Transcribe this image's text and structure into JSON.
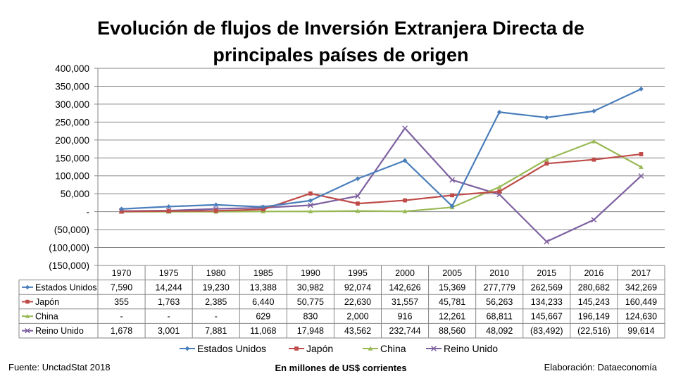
{
  "chart_data": {
    "type": "line",
    "title_lines": [
      "Evolución de flujos de Inversión Extranjera Directa de",
      "principales países de origen"
    ],
    "x": [
      "1970",
      "1975",
      "1980",
      "1985",
      "1990",
      "1995",
      "2000",
      "2005",
      "2010",
      "2015",
      "2016",
      "2017"
    ],
    "ylim": [
      -150000,
      400000
    ],
    "yticks": [
      400000,
      350000,
      300000,
      250000,
      200000,
      150000,
      100000,
      50000,
      0,
      -50000,
      -100000,
      -150000
    ],
    "ytick_labels": [
      "400,000",
      "350,000",
      "300,000",
      "250,000",
      "200,000",
      "150,000",
      "100,000",
      "50,000",
      "-",
      "(50,000)",
      "(100,000)",
      "(150,000)"
    ],
    "grid": true,
    "legend_position": "bottom",
    "series": [
      {
        "name": "Estados Unidos",
        "color": "#4a7ebb",
        "marker": "diamond",
        "values": [
          7590,
          14244,
          19230,
          13388,
          30982,
          92074,
          142626,
          15369,
          277779,
          262569,
          280682,
          342269
        ],
        "labels": [
          "7,590",
          "14,244",
          "19,230",
          "13,388",
          "30,982",
          "92,074",
          "142,626",
          "15,369",
          "277,779",
          "262,569",
          "280,682",
          "342,269"
        ]
      },
      {
        "name": "Japón",
        "color": "#be4b48",
        "marker": "square",
        "values": [
          355,
          1763,
          2385,
          6440,
          50775,
          22630,
          31557,
          45781,
          56263,
          134233,
          145243,
          160449
        ],
        "labels": [
          "355",
          "1,763",
          "2,385",
          "6,440",
          "50,775",
          "22,630",
          "31,557",
          "45,781",
          "56,263",
          "134,233",
          "145,243",
          "160,449"
        ]
      },
      {
        "name": "China",
        "color": "#98b954",
        "marker": "triangle",
        "values": [
          0,
          0,
          0,
          629,
          830,
          2000,
          916,
          12261,
          68811,
          145667,
          196149,
          124630
        ],
        "labels": [
          "-",
          "-",
          "-",
          "629",
          "830",
          "2,000",
          "916",
          "12,261",
          "68,811",
          "145,667",
          "196,149",
          "124,630"
        ]
      },
      {
        "name": "Reino Unido",
        "color": "#7d60a0",
        "marker": "x",
        "values": [
          1678,
          3001,
          7881,
          11068,
          17948,
          43562,
          232744,
          88560,
          48092,
          -83492,
          -22516,
          99614
        ],
        "labels": [
          "1,678",
          "3,001",
          "7,881",
          "11,068",
          "17,948",
          "43,562",
          "232,744",
          "88,560",
          "48,092",
          "(83,492)",
          "(22,516)",
          "99,614"
        ]
      }
    ]
  },
  "footer": {
    "source": "Fuente: UnctadStat 2018",
    "units": "En millones de US$ corrientes",
    "credit": "Elaboración: Dataeconomía"
  }
}
